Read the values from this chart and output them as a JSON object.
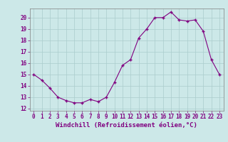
{
  "x": [
    0,
    1,
    2,
    3,
    4,
    5,
    6,
    7,
    8,
    9,
    10,
    11,
    12,
    13,
    14,
    15,
    16,
    17,
    18,
    19,
    20,
    21,
    22,
    23
  ],
  "y": [
    15.0,
    14.5,
    13.8,
    13.0,
    12.7,
    12.5,
    12.5,
    12.8,
    12.6,
    13.0,
    14.3,
    15.8,
    16.3,
    18.2,
    19.0,
    20.0,
    20.0,
    20.5,
    19.8,
    19.7,
    19.8,
    18.8,
    16.3,
    15.0
  ],
  "line_color": "#800080",
  "marker": "+",
  "marker_size": 3.5,
  "marker_lw": 1.0,
  "bg_color": "#cce8e8",
  "grid_color": "#aacccc",
  "tick_color": "#800080",
  "label_color": "#800080",
  "xlabel": "Windchill (Refroidissement éolien,°C)",
  "xlim": [
    -0.5,
    23.5
  ],
  "ylim": [
    11.8,
    20.8
  ],
  "yticks": [
    12,
    13,
    14,
    15,
    16,
    17,
    18,
    19,
    20
  ],
  "xticks": [
    0,
    1,
    2,
    3,
    4,
    5,
    6,
    7,
    8,
    9,
    10,
    11,
    12,
    13,
    14,
    15,
    16,
    17,
    18,
    19,
    20,
    21,
    22,
    23
  ],
  "tick_fontsize": 5.5,
  "xlabel_fontsize": 6.5
}
